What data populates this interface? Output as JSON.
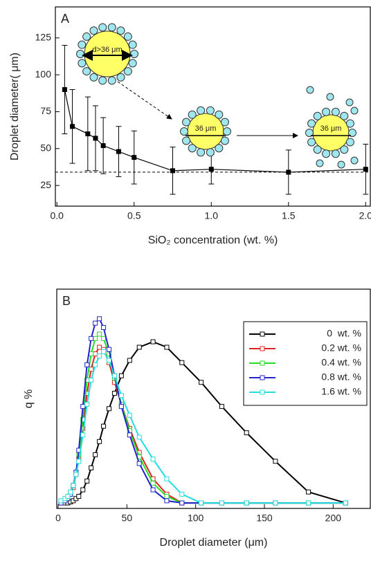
{
  "chart_data": [
    {
      "type": "line",
      "panel_label": "A",
      "x_label": "SiO₂ concentration (wt. %)",
      "y_label": "Droplet diameter( μm)",
      "x": [
        0.05,
        0.1,
        0.2,
        0.25,
        0.3,
        0.4,
        0.5,
        0.75,
        1.0,
        1.5,
        2.0
      ],
      "series": [
        {
          "color": "#000000",
          "marker": "filled-square",
          "values": [
            90,
            65,
            60,
            57,
            52,
            48,
            44,
            35,
            36,
            34,
            36
          ],
          "errors": [
            30,
            25,
            25,
            22,
            19,
            17,
            18,
            16,
            10,
            15,
            17
          ]
        }
      ],
      "reference_line": 34,
      "annotations": [
        "d>36 μm",
        "36 μm",
        "36 μm"
      ],
      "xlim": [
        -0.01,
        2.03
      ],
      "ylim": [
        11,
        146
      ],
      "xticks": [
        {
          "value": 0,
          "label": "0.0"
        },
        0.5,
        {
          "value": 1,
          "label": "1.0"
        },
        1.5,
        {
          "value": 2,
          "label": "2.0"
        }
      ],
      "yticks": [
        25,
        50,
        75,
        100,
        125
      ]
    },
    {
      "type": "line",
      "panel_label": "B",
      "x_label": "Droplet diameter (μm)",
      "y_label": "q %",
      "x": [
        2,
        5,
        7,
        9,
        11,
        13,
        15,
        18,
        21,
        24,
        27,
        30,
        33,
        37,
        41,
        46,
        52,
        59,
        69,
        79,
        90,
        104,
        119,
        137,
        158,
        182,
        209
      ],
      "series": [
        {
          "name": "0  wt. %",
          "color": "#000000",
          "marker": "open-square",
          "values": [
            0,
            0,
            0,
            0.5,
            1,
            2,
            3,
            6,
            10,
            16,
            22,
            28,
            35,
            43,
            50,
            58,
            65,
            71,
            73.5,
            71,
            64,
            55,
            44,
            32,
            19,
            5,
            0
          ]
        },
        {
          "name": "0.2 wt. %",
          "color": "#e02020",
          "marker": "open-square",
          "values": [
            0,
            1,
            2,
            4,
            7,
            13,
            20,
            34,
            50,
            61,
            68,
            71,
            70,
            64,
            55,
            45,
            34,
            23,
            11,
            4,
            0,
            0,
            0,
            0,
            0,
            0,
            0
          ]
        },
        {
          "name": "0.4 wt. %",
          "color": "#22dd22",
          "marker": "open-square",
          "values": [
            0,
            1,
            2,
            4,
            8,
            14,
            22,
            38,
            56,
            68,
            75,
            77,
            75,
            68,
            57,
            45,
            33,
            21,
            9,
            3,
            0,
            0,
            0,
            0,
            0,
            0,
            0
          ]
        },
        {
          "name": "0.8 wt. %",
          "color": "#2222cc",
          "marker": "open-square",
          "values": [
            0,
            1,
            2,
            4,
            8,
            14,
            24,
            44,
            63,
            75,
            82,
            84,
            80,
            70,
            58,
            44,
            31,
            18,
            6,
            1,
            0,
            0,
            0,
            0,
            0,
            0,
            0
          ]
        },
        {
          "name": "1.6 wt. %",
          "color": "#22dddd",
          "marker": "open-square",
          "values": [
            1,
            2,
            3,
            5,
            8,
            13,
            19,
            31,
            45,
            56,
            63,
            67,
            69,
            65,
            58,
            49,
            40,
            30,
            20,
            11,
            4,
            0,
            0,
            0,
            0,
            0,
            0
          ]
        }
      ],
      "legend": "upper right",
      "xlim": [
        -1,
        227
      ],
      "ylim": [
        -2.5,
        97.5
      ],
      "xticks": [
        0,
        50,
        100,
        150,
        200
      ]
    }
  ]
}
